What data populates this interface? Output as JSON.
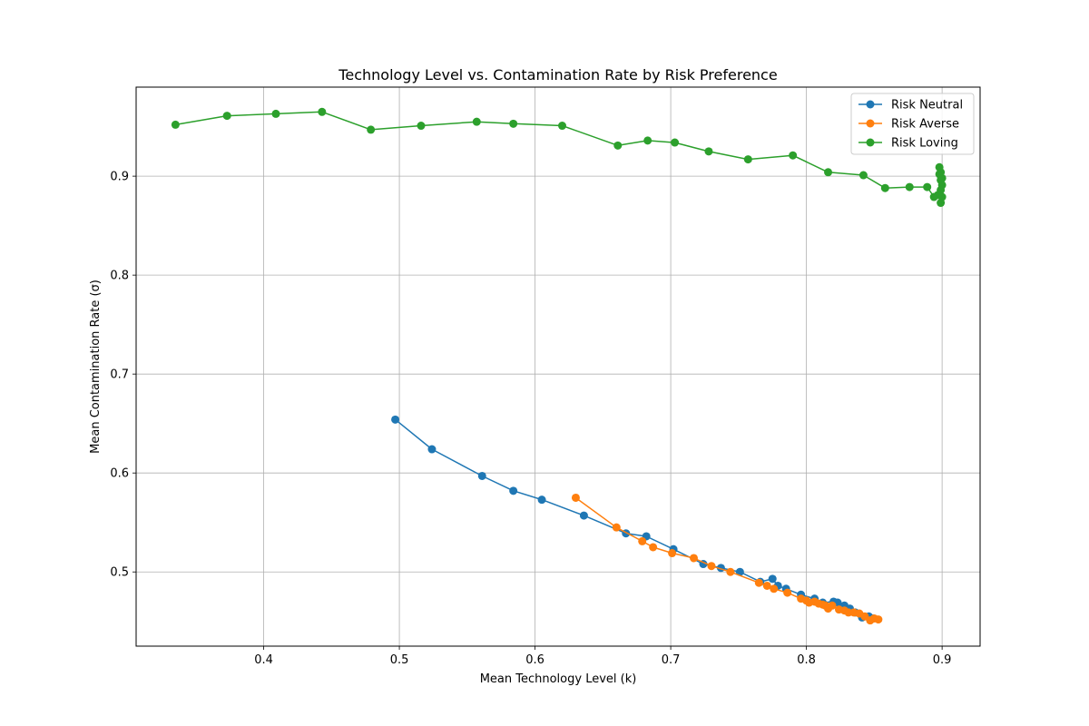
{
  "chart_data": {
    "type": "line",
    "title": "Technology Level vs. Contamination Rate by Risk Preference",
    "xlabel": "Mean Technology Level (k)",
    "ylabel": "Mean Contamination Rate (σ)",
    "xlim": [
      0.306,
      0.928
    ],
    "ylim": [
      0.425,
      0.99
    ],
    "xticks": [
      0.4,
      0.5,
      0.6,
      0.7,
      0.8,
      0.9
    ],
    "yticks": [
      0.5,
      0.6,
      0.7,
      0.8,
      0.9
    ],
    "grid": true,
    "legend": "top-right",
    "series": [
      {
        "name": "Risk Neutral",
        "color": "#1f77b4",
        "points": [
          [
            0.497,
            0.654
          ],
          [
            0.524,
            0.624
          ],
          [
            0.561,
            0.597
          ],
          [
            0.584,
            0.582
          ],
          [
            0.605,
            0.573
          ],
          [
            0.636,
            0.557
          ],
          [
            0.667,
            0.539
          ],
          [
            0.682,
            0.536
          ],
          [
            0.702,
            0.523
          ],
          [
            0.724,
            0.508
          ],
          [
            0.737,
            0.504
          ],
          [
            0.751,
            0.5
          ],
          [
            0.766,
            0.49
          ],
          [
            0.775,
            0.493
          ],
          [
            0.779,
            0.486
          ],
          [
            0.785,
            0.483
          ],
          [
            0.796,
            0.477
          ],
          [
            0.806,
            0.473
          ],
          [
            0.812,
            0.469
          ],
          [
            0.82,
            0.47
          ],
          [
            0.823,
            0.469
          ],
          [
            0.828,
            0.466
          ],
          [
            0.832,
            0.463
          ],
          [
            0.836,
            0.459
          ],
          [
            0.841,
            0.454
          ],
          [
            0.846,
            0.455
          ],
          [
            0.849,
            0.453
          ]
        ]
      },
      {
        "name": "Risk Averse",
        "color": "#ff7f0e",
        "points": [
          [
            0.63,
            0.575
          ],
          [
            0.66,
            0.545
          ],
          [
            0.679,
            0.531
          ],
          [
            0.687,
            0.525
          ],
          [
            0.701,
            0.519
          ],
          [
            0.717,
            0.514
          ],
          [
            0.73,
            0.506
          ],
          [
            0.744,
            0.5
          ],
          [
            0.765,
            0.489
          ],
          [
            0.771,
            0.486
          ],
          [
            0.776,
            0.483
          ],
          [
            0.786,
            0.479
          ],
          [
            0.796,
            0.473
          ],
          [
            0.8,
            0.471
          ],
          [
            0.802,
            0.469
          ],
          [
            0.806,
            0.47
          ],
          [
            0.809,
            0.468
          ],
          [
            0.812,
            0.467
          ],
          [
            0.814,
            0.466
          ],
          [
            0.816,
            0.463
          ],
          [
            0.819,
            0.466
          ],
          [
            0.824,
            0.462
          ],
          [
            0.828,
            0.461
          ],
          [
            0.831,
            0.459
          ],
          [
            0.835,
            0.459
          ],
          [
            0.839,
            0.458
          ],
          [
            0.843,
            0.455
          ],
          [
            0.847,
            0.451
          ],
          [
            0.85,
            0.453
          ],
          [
            0.853,
            0.452
          ]
        ]
      },
      {
        "name": "Risk Loving",
        "color": "#2ca02c",
        "points": [
          [
            0.335,
            0.952
          ],
          [
            0.373,
            0.961
          ],
          [
            0.409,
            0.963
          ],
          [
            0.443,
            0.965
          ],
          [
            0.479,
            0.947
          ],
          [
            0.516,
            0.951
          ],
          [
            0.557,
            0.955
          ],
          [
            0.584,
            0.953
          ],
          [
            0.62,
            0.951
          ],
          [
            0.661,
            0.931
          ],
          [
            0.683,
            0.936
          ],
          [
            0.703,
            0.934
          ],
          [
            0.728,
            0.925
          ],
          [
            0.757,
            0.917
          ],
          [
            0.79,
            0.921
          ],
          [
            0.816,
            0.904
          ],
          [
            0.842,
            0.901
          ],
          [
            0.858,
            0.888
          ],
          [
            0.876,
            0.889
          ],
          [
            0.889,
            0.889
          ],
          [
            0.894,
            0.879
          ],
          [
            0.897,
            0.881
          ],
          [
            0.899,
            0.873
          ],
          [
            0.9,
            0.879
          ],
          [
            0.899,
            0.886
          ],
          [
            0.9,
            0.891
          ],
          [
            0.899,
            0.896
          ],
          [
            0.898,
            0.902
          ],
          [
            0.9,
            0.898
          ],
          [
            0.899,
            0.904
          ],
          [
            0.898,
            0.909
          ]
        ]
      }
    ]
  }
}
